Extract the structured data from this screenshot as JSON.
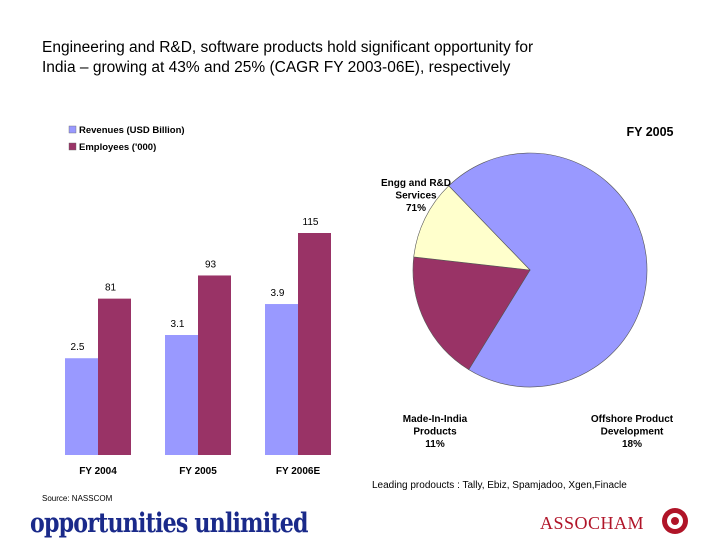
{
  "title": {
    "line1": "Engineering and R&D, software products hold significant opportunity for",
    "line2": "India – growing at 43% and 25% (CAGR FY 2003-06E), respectively"
  },
  "source": "Source: NASSCOM",
  "footer_note": "Leading prodoucts : Tally, Ebiz, Spamjadoo, Xgen,Finacle",
  "brand_left": "opportunities unlimited",
  "brand_right": "ASSOCHAM",
  "colors": {
    "revenue": "#9999FF",
    "employees": "#993366",
    "pie_engg": "#9999FF",
    "pie_offshore": "#993366",
    "pie_made": "#FFFFCC"
  },
  "chart_data": [
    {
      "type": "bar",
      "categories": [
        "FY 2004",
        "FY 2005",
        "FY 2006E"
      ],
      "series": [
        {
          "name": "Revenues (USD Billion)",
          "values": [
            2.5,
            3.1,
            3.9
          ],
          "labels": [
            "2.5",
            "3.1",
            "3.9"
          ]
        },
        {
          "name": "Employees ('000)",
          "values": [
            81,
            93,
            115
          ],
          "labels": [
            "81",
            "93",
            "115"
          ]
        }
      ],
      "legend_position": "top-left"
    },
    {
      "type": "pie",
      "title": "FY 2005",
      "slices": [
        {
          "label_lines": [
            "Engg and R&D",
            "Services"
          ],
          "value": 71,
          "value_label": "71%"
        },
        {
          "label_lines": [
            "Offshore Product",
            "Development"
          ],
          "value": 18,
          "value_label": "18%"
        },
        {
          "label_lines": [
            "Made-In-India",
            "Products"
          ],
          "value": 11,
          "value_label": "11%"
        }
      ]
    }
  ]
}
